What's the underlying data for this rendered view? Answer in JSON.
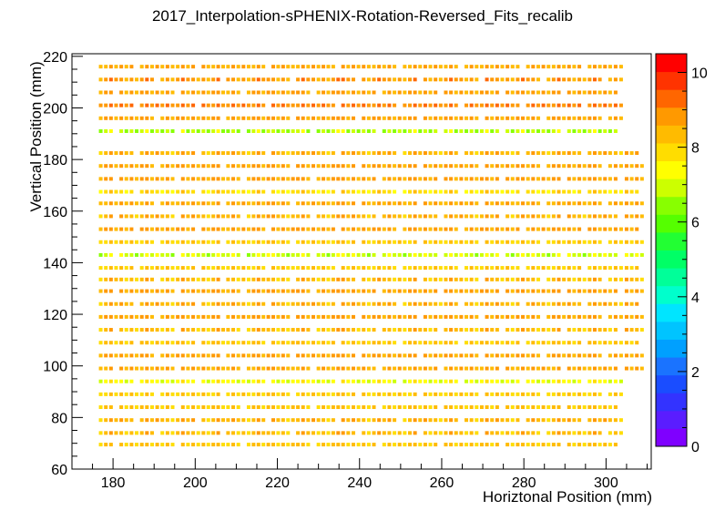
{
  "chart_data": {
    "type": "heatmap",
    "title": "2017_Interpolation-sPHENIX-Rotation-Reversed_Fits_recalib",
    "xlabel": "Horiztonal Position (mm)",
    "ylabel": "Vertical Position (mm)",
    "xlim": [
      170,
      311
    ],
    "ylim": [
      60,
      221
    ],
    "xticks": [
      180,
      200,
      220,
      240,
      260,
      280,
      300
    ],
    "yticks": [
      60,
      80,
      100,
      120,
      140,
      160,
      180,
      200,
      220
    ],
    "zlim": [
      0,
      10.5
    ],
    "zticks": [
      0,
      2,
      4,
      6,
      8,
      10
    ],
    "colorbar_colors": [
      "#7f00ff",
      "#5a1dff",
      "#3333ff",
      "#1a4dff",
      "#1a73ff",
      "#00a0ff",
      "#00c4ff",
      "#00e5ff",
      "#00ffcc",
      "#00ff99",
      "#00ff66",
      "#22ff33",
      "#55ff00",
      "#88ff00",
      "#ccff00",
      "#ffff00",
      "#ffdd00",
      "#ffbb00",
      "#ff9900",
      "#ff6600",
      "#ff3300",
      "#ff0000"
    ],
    "x_columns": [
      177,
      182,
      187,
      192,
      197,
      202,
      208,
      213,
      219,
      225,
      230,
      236,
      241,
      246,
      251,
      256,
      261,
      266,
      271,
      276,
      281,
      286,
      291,
      296,
      301,
      305
    ],
    "rows": [
      {
        "y": 69.5,
        "x_from": 177,
        "x_to": 301,
        "value": 8.2
      },
      {
        "y": 74.0,
        "x_from": 177,
        "x_to": 301,
        "value": 8.3
      },
      {
        "y": 79.0,
        "x_from": 177,
        "x_to": 301,
        "value": 8.4
      },
      {
        "y": 84.0,
        "x_from": 177,
        "x_to": 301,
        "value": 8.2
      },
      {
        "y": 89.0,
        "x_from": 177,
        "x_to": 301,
        "value": 8.0
      },
      {
        "y": 94.0,
        "x_from": 177,
        "x_to": 301,
        "value": 7.3
      },
      {
        "y": 99.0,
        "x_from": 177,
        "x_to": 305,
        "value": 8.5
      },
      {
        "y": 104.0,
        "x_from": 177,
        "x_to": 305,
        "value": 8.7
      },
      {
        "y": 109.0,
        "x_from": 177,
        "x_to": 305,
        "value": 8.2
      },
      {
        "y": 114.0,
        "x_from": 177,
        "x_to": 305,
        "value": 8.3
      },
      {
        "y": 119.0,
        "x_from": 177,
        "x_to": 305,
        "value": 8.6
      },
      {
        "y": 124.0,
        "x_from": 177,
        "x_to": 305,
        "value": 8.4
      },
      {
        "y": 129.0,
        "x_from": 177,
        "x_to": 305,
        "value": 8.6
      },
      {
        "y": 133.5,
        "x_from": 177,
        "x_to": 305,
        "value": 8.3
      },
      {
        "y": 138.0,
        "x_from": 177,
        "x_to": 305,
        "value": 8.1
      },
      {
        "y": 143.0,
        "x_from": 177,
        "x_to": 305,
        "value": 7.0
      },
      {
        "y": 148.0,
        "x_from": 177,
        "x_to": 305,
        "value": 8.1
      },
      {
        "y": 153.0,
        "x_from": 177,
        "x_to": 305,
        "value": 8.6
      },
      {
        "y": 158.0,
        "x_from": 177,
        "x_to": 305,
        "value": 8.4
      },
      {
        "y": 163.0,
        "x_from": 177,
        "x_to": 305,
        "value": 8.5
      },
      {
        "y": 167.5,
        "x_from": 177,
        "x_to": 305,
        "value": 7.8
      },
      {
        "y": 172.5,
        "x_from": 177,
        "x_to": 305,
        "value": 8.6
      },
      {
        "y": 177.5,
        "x_from": 177,
        "x_to": 305,
        "value": 8.7
      },
      {
        "y": 182.5,
        "x_from": 177,
        "x_to": 305,
        "value": 8.4
      },
      {
        "y": 191.0,
        "x_from": 177,
        "x_to": 301,
        "value": 6.8
      },
      {
        "y": 196.0,
        "x_from": 177,
        "x_to": 301,
        "value": 8.7
      },
      {
        "y": 201.0,
        "x_from": 177,
        "x_to": 301,
        "value": 9.0
      },
      {
        "y": 206.0,
        "x_from": 177,
        "x_to": 301,
        "value": 8.6
      },
      {
        "y": 211.0,
        "x_from": 177,
        "x_to": 301,
        "value": 8.8
      },
      {
        "y": 216.0,
        "x_from": 177,
        "x_to": 301,
        "value": 8.5
      }
    ]
  }
}
